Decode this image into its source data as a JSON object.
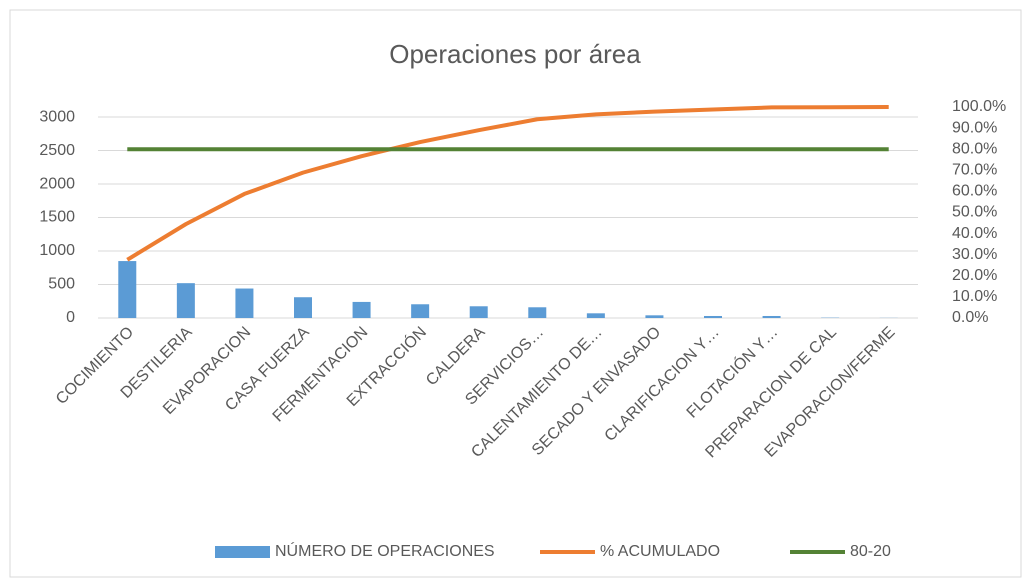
{
  "chart_data": {
    "type": "pareto",
    "title": "Operaciones por  área",
    "categories": [
      "COCIMIENTO",
      "DESTILERIA",
      "EVAPORACION",
      "CASA FUERZA",
      "FERMENTACION",
      "EXTRACCIÓN",
      "CALDERA",
      "SERVICIOS…",
      "CALENTAMIENTO DE…",
      "SECADO Y ENVASADO",
      "CLARIFICACION Y…",
      "FLOTACIÓN Y…",
      "PREPARACION DE CAL",
      "EVAPORACION/FERME"
    ],
    "series": [
      {
        "name": "NÚMERO DE OPERACIONES",
        "type": "bar",
        "color": "#5b9bd5",
        "values": [
          850,
          520,
          440,
          310,
          240,
          205,
          175,
          160,
          70,
          40,
          30,
          30,
          5,
          2
        ]
      },
      {
        "name": "% ACUMULADO",
        "type": "line",
        "axis": "y2",
        "color": "#ed7d31",
        "values": [
          27.6,
          44.5,
          58.8,
          68.9,
          76.7,
          83.4,
          89.0,
          94.2,
          96.5,
          97.8,
          98.8,
          99.8,
          99.9,
          100
        ]
      },
      {
        "name": "80-20",
        "type": "line",
        "axis": "y2",
        "color": "#548235",
        "values": [
          80,
          80,
          80,
          80,
          80,
          80,
          80,
          80,
          80,
          80,
          80,
          80,
          80,
          80
        ]
      }
    ],
    "ylim": [
      0,
      3150
    ],
    "yticks": [
      0,
      500,
      1000,
      1500,
      2000,
      2500,
      3000
    ],
    "y2lim": [
      0,
      100
    ],
    "y2ticks": [
      {
        "value": 0,
        "label": "0.0%"
      },
      {
        "value": 10,
        "label": "10.0%"
      },
      {
        "value": 20,
        "label": "20.0%"
      },
      {
        "value": 30,
        "label": "30.0%"
      },
      {
        "value": 40,
        "label": "40.0%"
      },
      {
        "value": 50,
        "label": "50.0%"
      },
      {
        "value": 60,
        "label": "60.0%"
      },
      {
        "value": 70,
        "label": "70.0%"
      },
      {
        "value": 80,
        "label": "80.0%"
      },
      {
        "value": 90,
        "label": "90.0%"
      },
      {
        "value": 100,
        "label": "100.0%"
      }
    ],
    "grid": true,
    "legend": "bottom"
  }
}
